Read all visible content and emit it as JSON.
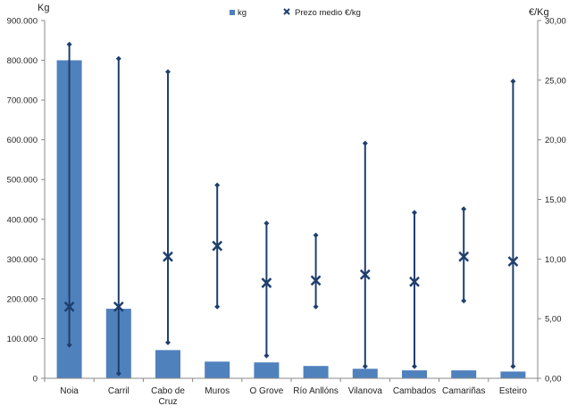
{
  "chart_data": {
    "type": "bar",
    "title": "",
    "left_axis_unit": "Kg",
    "right_axis_unit": "€/Kg",
    "categories": [
      "Noia",
      "Carril",
      "Cabo de Cruz",
      "Muros",
      "O Grove",
      "Río Anllóns",
      "Vilanova",
      "Cambados",
      "Camariñas",
      "Esteiro"
    ],
    "category_lines": [
      [
        "Noia"
      ],
      [
        "Carril"
      ],
      [
        "Cabo de",
        "Cruz"
      ],
      [
        "Muros"
      ],
      [
        "O Grove"
      ],
      [
        "Río Anllóns"
      ],
      [
        "Vilanova"
      ],
      [
        "Cambados"
      ],
      [
        "Camariñas"
      ],
      [
        "Esteiro"
      ]
    ],
    "yticks_left": [
      "0",
      "100.000",
      "200.000",
      "300.000",
      "400.000",
      "500.000",
      "600.000",
      "700.000",
      "800.000",
      "900.000"
    ],
    "yticks_right": [
      "0,00",
      "5,00",
      "10,00",
      "15,00",
      "20,00",
      "25,00",
      "30,00"
    ],
    "ylim_left": [
      0,
      900000
    ],
    "ylim_right": [
      0,
      30
    ],
    "series": [
      {
        "name": "kg",
        "axis": "left",
        "kind": "bar",
        "color": "#4F81BD",
        "values": [
          800000,
          175000,
          71000,
          42000,
          40000,
          31000,
          24000,
          20000,
          20000,
          17000
        ]
      },
      {
        "name": "Prezo medio €/kg",
        "axis": "right",
        "kind": "range-marker",
        "color": "#1F3F6E",
        "values": [
          6.0,
          6.0,
          10.2,
          11.1,
          8.0,
          8.2,
          8.7,
          8.1,
          10.2,
          9.8
        ],
        "max": [
          28.0,
          26.8,
          25.7,
          16.2,
          13.0,
          12.0,
          19.7,
          13.9,
          14.2,
          24.9
        ],
        "min": [
          2.8,
          0.4,
          3.0,
          6.0,
          1.9,
          6.0,
          1.0,
          1.0,
          6.5,
          1.0
        ]
      }
    ],
    "legend_position": "top",
    "grid": false
  }
}
